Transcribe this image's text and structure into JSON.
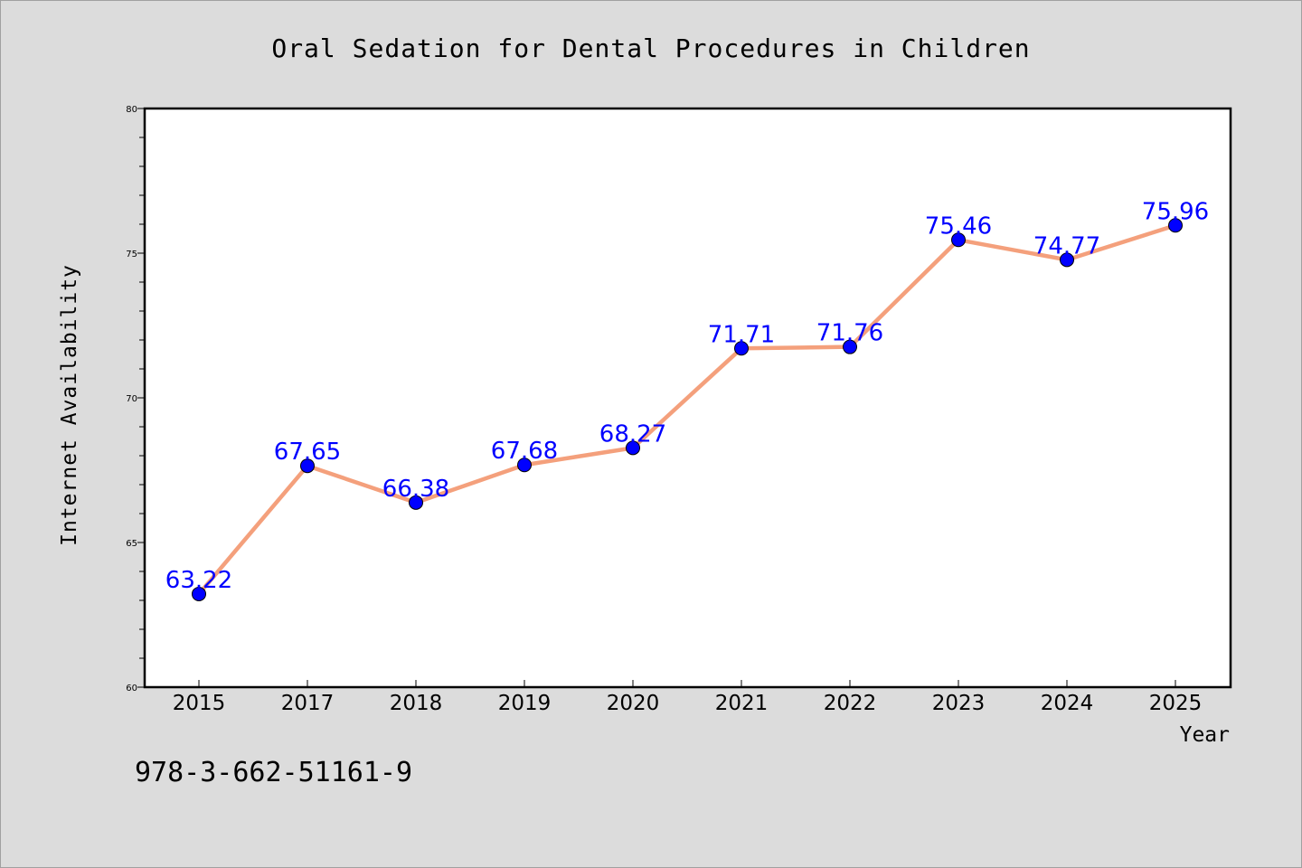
{
  "chart_data": {
    "type": "line",
    "title": "Oral Sedation for Dental Procedures in Children",
    "xlabel": "Year",
    "ylabel": "Internet Availability",
    "categories": [
      "2015",
      "2017",
      "2018",
      "2019",
      "2020",
      "2021",
      "2022",
      "2023",
      "2024",
      "2025"
    ],
    "values": [
      63.22,
      67.65,
      66.38,
      67.68,
      68.27,
      71.71,
      71.76,
      75.46,
      74.77,
      75.96
    ],
    "data_labels": [
      "63.22",
      "67.65",
      "66.38",
      "67.68",
      "68.27",
      "71.71",
      "71.76",
      "75.46",
      "74.77",
      "75.96"
    ],
    "ylim": [
      60,
      80
    ],
    "yticks": [
      60,
      65,
      70,
      75,
      80
    ],
    "grid": false,
    "legend": "none",
    "line_color": "#f4a07c",
    "marker_color": "#0000ff"
  },
  "footer": {
    "isbn": "978-3-662-51161-9"
  }
}
